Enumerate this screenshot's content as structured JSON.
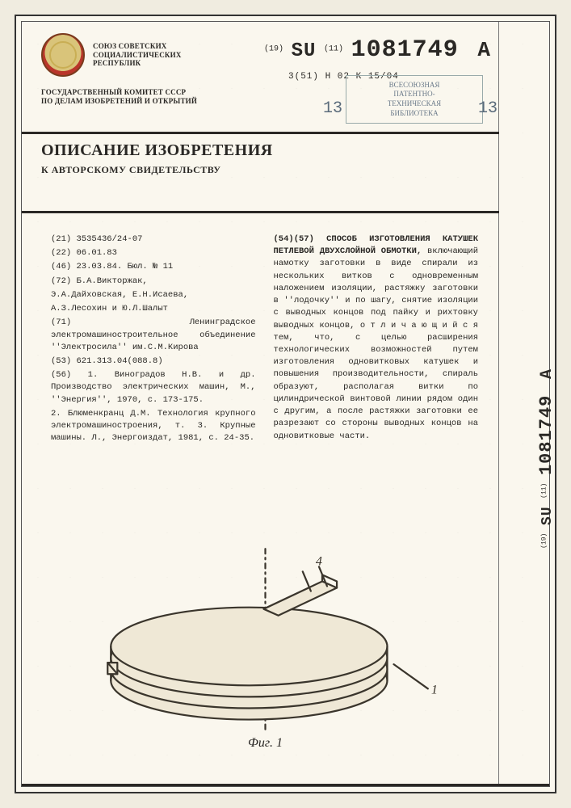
{
  "emblem_text": "СОЮЗ СОВЕТСКИХ\nСОЦИАЛИСТИЧЕСКИХ\nРЕСПУБЛИК",
  "pubno": {
    "prefix19": "(19)",
    "cc": "SU",
    "prefix11": "(11)",
    "number": "1081749",
    "kind": "A"
  },
  "ipc": "3(51) H 02 K 15/04",
  "committee": "ГОСУДАРСТВЕННЫЙ КОМИТЕТ СССР\nПО ДЕЛАМ ИЗОБРЕТЕНИЙ И ОТКРЫТИЙ",
  "stamp": {
    "text": "ВСЕСОЮЗНАЯ\nПАТЕНТНО-\nТЕХНИЧЕСКАЯ\nБИБЛИОТЕКА",
    "num": "13"
  },
  "title": "ОПИСАНИЕ ИЗОБРЕТЕНИЯ",
  "subtitle": "К АВТОРСКОМУ СВИДЕТЕЛЬСТВУ",
  "left_col": [
    "(21) 3535436/24-07",
    "(22) 06.01.83",
    "(46) 23.03.84. Бюл. № 11",
    "(72) Б.А.Викторжак,",
    "Э.А.Дайховская, Е.Н.Исаева,",
    "А.З.Лесохин и Ю.Л.Шалыт",
    "(71) Ленинградское электромашиностроительное объединение ''Электросила'' им.С.М.Кирова",
    "(53) 621.313.04(088.8)",
    "(56) 1. Виноградов Н.В. и др. Производство электрических машин, М., ''Энергия'', 1970, с. 173-175.",
    "2. Блюменкранц Д.М. Технология крупного электромашиностроения, т. 3. Крупные машины. Л., Энергоиздат, 1981, с. 24-35."
  ],
  "abstract": {
    "heading": "(54)(57) СПОСОБ ИЗГОТОВЛЕНИЯ КАТУШЕК ПЕТЛЕВОЙ ДВУХСЛОЙНОЙ ОБМОТКИ,",
    "body": "включающий намотку заготовки в виде спирали из нескольких витков с одновременным наложением изоляции, растяжку заготовки в ''лодочку'' и по шагу, снятие изоляции с выводных концов под пайку и рихтовку выводных концов, о т л и ч а ю щ и й с я  тем, что, с целью расширения технологических возможностей путем изготовления одновитковых катушек и повышения производительности, спираль образуют, располагая витки по цилиндрической винтовой линии рядом один с другим, а после растяжки заготовки ее разрезают со стороны выводных концов на одновитковые части."
  },
  "figure": {
    "label": "Фиг. 1",
    "callouts": {
      "a": "4",
      "b": "1"
    },
    "stroke": "#3a352c",
    "fill": "#efe8d6"
  }
}
